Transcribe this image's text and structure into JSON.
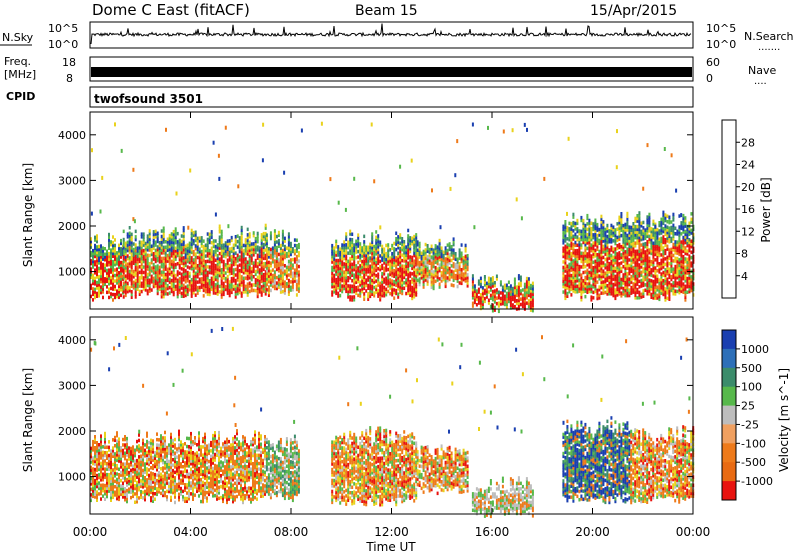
{
  "header": {
    "site": "Dome C East (fitACF)",
    "beam": "Beam 15",
    "date": "15/Apr/2015"
  },
  "nsky_panel": {
    "label": "N.Sky",
    "left_ticks": [
      "10^5",
      "10^0"
    ],
    "right_ticks": [
      "10^5",
      "10^0"
    ],
    "right_label": "N.Search",
    "right_label_dots": "......."
  },
  "freq_panel": {
    "label_line1": "Freq.",
    "label_line2": "[MHz]",
    "left_ticks": [
      "18",
      "8"
    ],
    "right_ticks": [
      "60",
      "0"
    ],
    "right_label": "Nave",
    "right_label_dots": "...."
  },
  "cpid_panel": {
    "label": "CPID",
    "program": "twofsound 3501"
  },
  "time_axis": {
    "label": "Time UT",
    "ticks": [
      "00:00",
      "04:00",
      "08:00",
      "12:00",
      "16:00",
      "20:00",
      "00:00"
    ],
    "tick_hours": [
      0,
      4,
      8,
      12,
      16,
      20,
      24
    ]
  },
  "colors": {
    "red": "#e8130f",
    "orange": "#ee7a1a",
    "yellow": "#e9d21c",
    "green": "#57b84b",
    "teal": "#3b8c6b",
    "blue": "#1a3fb0",
    "gray": "#bdbdbd"
  },
  "chart_data": [
    {
      "type": "heatmap",
      "panel": "power",
      "ylabel": "Slant Range [km]",
      "xlabel": "",
      "ylim": [
        180,
        4500
      ],
      "yticks": [
        "1000",
        "2000",
        "3000",
        "4000"
      ],
      "xlim_hours": [
        0,
        24
      ],
      "colorbar": {
        "label": "Power [dB]",
        "ticks": [
          "4",
          "8",
          "12",
          "16",
          "20",
          "24",
          "28"
        ],
        "range": [
          0,
          32
        ],
        "colors": [
          "#1326d6",
          "#2d4fb0",
          "#3b8c6b",
          "#57b84b",
          "#c9d320",
          "#e9c21c",
          "#ee7a1a",
          "#e8130f"
        ]
      },
      "echo_regions": [
        {
          "t_start": 0.0,
          "t_end": 1.3,
          "range_low": 450,
          "range_high": 1600,
          "dominant": "red"
        },
        {
          "t_start": 1.3,
          "t_end": 7.0,
          "range_low": 500,
          "range_high": 1800,
          "dominant": "red"
        },
        {
          "t_start": 7.0,
          "t_end": 8.3,
          "range_low": 550,
          "range_high": 1700,
          "dominant": "orange"
        },
        {
          "t_start": 9.6,
          "t_end": 13.0,
          "range_low": 450,
          "range_high": 1700,
          "dominant": "red"
        },
        {
          "t_start": 13.0,
          "t_end": 15.0,
          "range_low": 700,
          "range_high": 1500,
          "dominant": "orange"
        },
        {
          "t_start": 15.2,
          "t_end": 17.6,
          "range_low": 200,
          "range_high": 800,
          "dominant": "red"
        },
        {
          "t_start": 18.8,
          "t_end": 24.0,
          "range_low": 450,
          "range_high": 2100,
          "dominant": "red"
        }
      ]
    },
    {
      "type": "heatmap",
      "panel": "velocity",
      "ylabel": "Slant Range [km]",
      "xlabel": "Time UT",
      "ylim": [
        180,
        4500
      ],
      "yticks": [
        "1000",
        "2000",
        "3000",
        "4000"
      ],
      "xlim_hours": [
        0,
        24
      ],
      "colorbar": {
        "label": "Velocity [m s^-1]",
        "ticks": [
          "1000",
          "500",
          "100",
          "25",
          "-25",
          "-100",
          "-500",
          "-1000"
        ],
        "colors": [
          "#1a3fb0",
          "#2d6fb8",
          "#3b8c6b",
          "#57b84b",
          "#bdbdbd",
          "#f0a060",
          "#ee7a1a",
          "#e86a12",
          "#e8130f"
        ]
      },
      "echo_regions": [
        {
          "t_start": 0.0,
          "t_end": 7.0,
          "range_low": 500,
          "range_high": 1800,
          "dominant": "orange"
        },
        {
          "t_start": 7.0,
          "t_end": 8.3,
          "range_low": 550,
          "range_high": 1700,
          "dominant": "green"
        },
        {
          "t_start": 9.6,
          "t_end": 13.0,
          "range_low": 450,
          "range_high": 1900,
          "dominant": "orange"
        },
        {
          "t_start": 13.0,
          "t_end": 15.0,
          "range_low": 700,
          "range_high": 1500,
          "dominant": "orange"
        },
        {
          "t_start": 15.2,
          "t_end": 17.6,
          "range_low": 200,
          "range_high": 800,
          "dominant": "gray"
        },
        {
          "t_start": 18.8,
          "t_end": 21.5,
          "range_low": 500,
          "range_high": 2100,
          "dominant": "blue"
        },
        {
          "t_start": 21.5,
          "t_end": 24.0,
          "range_low": 500,
          "range_high": 1900,
          "dominant": "orange"
        }
      ]
    }
  ]
}
